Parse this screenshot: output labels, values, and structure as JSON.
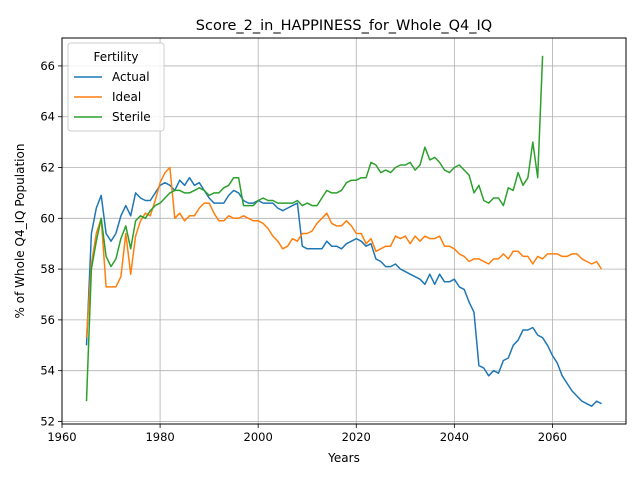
{
  "chart_data": {
    "type": "line",
    "title": "Score_2_in_HAPPINESS_for_Whole_Q4_IQ",
    "xlabel": "Years",
    "ylabel": "% of Whole Q4_IQ Population",
    "xlim": [
      1960,
      2075
    ],
    "ylim": [
      51.9,
      67.1
    ],
    "xticks": [
      1960,
      1980,
      2000,
      2020,
      2040,
      2060
    ],
    "yticks": [
      52,
      54,
      56,
      58,
      60,
      62,
      64,
      66
    ],
    "grid": true,
    "legend": {
      "title": "Fertility",
      "position": "top-left"
    },
    "series": [
      {
        "name": "Actual",
        "color": "#1f77b4",
        "points": [
          [
            1965,
            55.0
          ],
          [
            1966,
            59.4
          ],
          [
            1967,
            60.4
          ],
          [
            1968,
            60.9
          ],
          [
            1969,
            59.4
          ],
          [
            1970,
            59.1
          ],
          [
            1971,
            59.4
          ],
          [
            1972,
            60.1
          ],
          [
            1973,
            60.5
          ],
          [
            1974,
            60.1
          ],
          [
            1975,
            61.0
          ],
          [
            1976,
            60.8
          ],
          [
            1977,
            60.7
          ],
          [
            1978,
            60.7
          ],
          [
            1979,
            61.0
          ],
          [
            1980,
            61.3
          ],
          [
            1981,
            61.4
          ],
          [
            1982,
            61.3
          ],
          [
            1983,
            61.1
          ],
          [
            1984,
            61.5
          ],
          [
            1985,
            61.3
          ],
          [
            1986,
            61.6
          ],
          [
            1987,
            61.3
          ],
          [
            1988,
            61.4
          ],
          [
            1989,
            61.1
          ],
          [
            1990,
            60.8
          ],
          [
            1991,
            60.6
          ],
          [
            1992,
            60.6
          ],
          [
            1993,
            60.6
          ],
          [
            1994,
            60.9
          ],
          [
            1995,
            61.1
          ],
          [
            1996,
            61.0
          ],
          [
            1997,
            60.7
          ],
          [
            1998,
            60.6
          ],
          [
            1999,
            60.6
          ],
          [
            2000,
            60.7
          ],
          [
            2001,
            60.6
          ],
          [
            2002,
            60.6
          ],
          [
            2003,
            60.6
          ],
          [
            2004,
            60.4
          ],
          [
            2005,
            60.3
          ],
          [
            2006,
            60.4
          ],
          [
            2007,
            60.5
          ],
          [
            2008,
            60.6
          ],
          [
            2009,
            58.9
          ],
          [
            2010,
            58.8
          ],
          [
            2011,
            58.8
          ],
          [
            2012,
            58.8
          ],
          [
            2013,
            58.8
          ],
          [
            2014,
            59.1
          ],
          [
            2015,
            58.9
          ],
          [
            2016,
            58.9
          ],
          [
            2017,
            58.8
          ],
          [
            2018,
            59.0
          ],
          [
            2019,
            59.1
          ],
          [
            2020,
            59.2
          ],
          [
            2021,
            59.1
          ],
          [
            2022,
            58.9
          ],
          [
            2023,
            59.0
          ],
          [
            2024,
            58.4
          ],
          [
            2025,
            58.3
          ],
          [
            2026,
            58.1
          ],
          [
            2027,
            58.1
          ],
          [
            2028,
            58.2
          ],
          [
            2029,
            58.0
          ],
          [
            2030,
            57.9
          ],
          [
            2031,
            57.8
          ],
          [
            2032,
            57.7
          ],
          [
            2033,
            57.6
          ],
          [
            2034,
            57.4
          ],
          [
            2035,
            57.8
          ],
          [
            2036,
            57.4
          ],
          [
            2037,
            57.8
          ],
          [
            2038,
            57.5
          ],
          [
            2039,
            57.5
          ],
          [
            2040,
            57.6
          ],
          [
            2041,
            57.3
          ],
          [
            2042,
            57.2
          ],
          [
            2043,
            56.7
          ],
          [
            2044,
            56.3
          ],
          [
            2045,
            54.2
          ],
          [
            2046,
            54.1
          ],
          [
            2047,
            53.8
          ],
          [
            2048,
            54.0
          ],
          [
            2049,
            53.9
          ],
          [
            2050,
            54.4
          ],
          [
            2051,
            54.5
          ],
          [
            2052,
            55.0
          ],
          [
            2053,
            55.2
          ],
          [
            2054,
            55.6
          ],
          [
            2055,
            55.6
          ],
          [
            2056,
            55.7
          ],
          [
            2057,
            55.4
          ],
          [
            2058,
            55.3
          ],
          [
            2059,
            55.0
          ],
          [
            2060,
            54.6
          ],
          [
            2061,
            54.3
          ],
          [
            2062,
            53.8
          ],
          [
            2063,
            53.5
          ],
          [
            2064,
            53.2
          ],
          [
            2065,
            53.0
          ],
          [
            2066,
            52.8
          ],
          [
            2067,
            52.7
          ],
          [
            2068,
            52.6
          ],
          [
            2069,
            52.8
          ],
          [
            2070,
            52.7
          ]
        ]
      },
      {
        "name": "Ideal",
        "color": "#ff7f0e",
        "points": [
          [
            1965,
            55.3
          ],
          [
            1966,
            58.2
          ],
          [
            1967,
            59.4
          ],
          [
            1968,
            60.0
          ],
          [
            1969,
            57.3
          ],
          [
            1970,
            57.3
          ],
          [
            1971,
            57.3
          ],
          [
            1972,
            57.7
          ],
          [
            1973,
            59.4
          ],
          [
            1974,
            57.8
          ],
          [
            1975,
            59.3
          ],
          [
            1976,
            59.9
          ],
          [
            1977,
            60.2
          ],
          [
            1978,
            60.1
          ],
          [
            1979,
            60.7
          ],
          [
            1980,
            61.4
          ],
          [
            1981,
            61.8
          ],
          [
            1982,
            62.0
          ],
          [
            1983,
            60.0
          ],
          [
            1984,
            60.2
          ],
          [
            1985,
            59.9
          ],
          [
            1986,
            60.1
          ],
          [
            1987,
            60.1
          ],
          [
            1988,
            60.4
          ],
          [
            1989,
            60.6
          ],
          [
            1990,
            60.6
          ],
          [
            1991,
            60.2
          ],
          [
            1992,
            59.9
          ],
          [
            1993,
            59.9
          ],
          [
            1994,
            60.1
          ],
          [
            1995,
            60.0
          ],
          [
            1996,
            60.0
          ],
          [
            1997,
            60.1
          ],
          [
            1998,
            60.0
          ],
          [
            1999,
            59.9
          ],
          [
            2000,
            59.9
          ],
          [
            2001,
            59.8
          ],
          [
            2002,
            59.6
          ],
          [
            2003,
            59.3
          ],
          [
            2004,
            59.1
          ],
          [
            2005,
            58.8
          ],
          [
            2006,
            58.9
          ],
          [
            2007,
            59.2
          ],
          [
            2008,
            59.1
          ],
          [
            2009,
            59.4
          ],
          [
            2010,
            59.4
          ],
          [
            2011,
            59.5
          ],
          [
            2012,
            59.8
          ],
          [
            2013,
            60.0
          ],
          [
            2014,
            60.2
          ],
          [
            2015,
            59.8
          ],
          [
            2016,
            59.7
          ],
          [
            2017,
            59.7
          ],
          [
            2018,
            59.9
          ],
          [
            2019,
            59.7
          ],
          [
            2020,
            59.4
          ],
          [
            2021,
            59.4
          ],
          [
            2022,
            59.0
          ],
          [
            2023,
            59.2
          ],
          [
            2024,
            58.7
          ],
          [
            2025,
            58.8
          ],
          [
            2026,
            58.9
          ],
          [
            2027,
            58.9
          ],
          [
            2028,
            59.3
          ],
          [
            2029,
            59.2
          ],
          [
            2030,
            59.3
          ],
          [
            2031,
            59.0
          ],
          [
            2032,
            59.3
          ],
          [
            2033,
            59.1
          ],
          [
            2034,
            59.3
          ],
          [
            2035,
            59.2
          ],
          [
            2036,
            59.2
          ],
          [
            2037,
            59.3
          ],
          [
            2038,
            58.9
          ],
          [
            2039,
            58.9
          ],
          [
            2040,
            58.8
          ],
          [
            2041,
            58.6
          ],
          [
            2042,
            58.5
          ],
          [
            2043,
            58.3
          ],
          [
            2044,
            58.4
          ],
          [
            2045,
            58.4
          ],
          [
            2046,
            58.3
          ],
          [
            2047,
            58.2
          ],
          [
            2048,
            58.4
          ],
          [
            2049,
            58.4
          ],
          [
            2050,
            58.6
          ],
          [
            2051,
            58.4
          ],
          [
            2052,
            58.7
          ],
          [
            2053,
            58.7
          ],
          [
            2054,
            58.5
          ],
          [
            2055,
            58.5
          ],
          [
            2056,
            58.2
          ],
          [
            2057,
            58.5
          ],
          [
            2058,
            58.4
          ],
          [
            2059,
            58.6
          ],
          [
            2060,
            58.6
          ],
          [
            2061,
            58.6
          ],
          [
            2062,
            58.5
          ],
          [
            2063,
            58.5
          ],
          [
            2064,
            58.6
          ],
          [
            2065,
            58.6
          ],
          [
            2066,
            58.4
          ],
          [
            2067,
            58.3
          ],
          [
            2068,
            58.2
          ],
          [
            2069,
            58.3
          ],
          [
            2070,
            58.0
          ]
        ]
      },
      {
        "name": "Sterile",
        "color": "#2ca02c",
        "points": [
          [
            1965,
            52.8
          ],
          [
            1966,
            58.0
          ],
          [
            1967,
            59.1
          ],
          [
            1968,
            60.0
          ],
          [
            1969,
            58.5
          ],
          [
            1970,
            58.1
          ],
          [
            1971,
            58.4
          ],
          [
            1972,
            59.2
          ],
          [
            1973,
            59.7
          ],
          [
            1974,
            58.8
          ],
          [
            1975,
            59.9
          ],
          [
            1976,
            60.1
          ],
          [
            1977,
            60.0
          ],
          [
            1978,
            60.3
          ],
          [
            1979,
            60.5
          ],
          [
            1980,
            60.6
          ],
          [
            1981,
            60.8
          ],
          [
            1982,
            61.0
          ],
          [
            1983,
            61.1
          ],
          [
            1984,
            61.1
          ],
          [
            1985,
            61.0
          ],
          [
            1986,
            61.0
          ],
          [
            1987,
            61.1
          ],
          [
            1988,
            61.2
          ],
          [
            1989,
            61.1
          ],
          [
            1990,
            60.9
          ],
          [
            1991,
            61.0
          ],
          [
            1992,
            61.0
          ],
          [
            1993,
            61.2
          ],
          [
            1994,
            61.3
          ],
          [
            1995,
            61.6
          ],
          [
            1996,
            61.6
          ],
          [
            1997,
            60.5
          ],
          [
            1998,
            60.5
          ],
          [
            1999,
            60.5
          ],
          [
            2000,
            60.7
          ],
          [
            2001,
            60.8
          ],
          [
            2002,
            60.7
          ],
          [
            2003,
            60.7
          ],
          [
            2004,
            60.6
          ],
          [
            2005,
            60.6
          ],
          [
            2006,
            60.6
          ],
          [
            2007,
            60.6
          ],
          [
            2008,
            60.7
          ],
          [
            2009,
            60.5
          ],
          [
            2010,
            60.6
          ],
          [
            2011,
            60.5
          ],
          [
            2012,
            60.5
          ],
          [
            2013,
            60.8
          ],
          [
            2014,
            61.1
          ],
          [
            2015,
            61.0
          ],
          [
            2016,
            61.0
          ],
          [
            2017,
            61.1
          ],
          [
            2018,
            61.4
          ],
          [
            2019,
            61.5
          ],
          [
            2020,
            61.5
          ],
          [
            2021,
            61.6
          ],
          [
            2022,
            61.6
          ],
          [
            2023,
            62.2
          ],
          [
            2024,
            62.1
          ],
          [
            2025,
            61.8
          ],
          [
            2026,
            61.9
          ],
          [
            2027,
            61.8
          ],
          [
            2028,
            62.0
          ],
          [
            2029,
            62.1
          ],
          [
            2030,
            62.1
          ],
          [
            2031,
            62.2
          ],
          [
            2032,
            61.9
          ],
          [
            2033,
            62.1
          ],
          [
            2034,
            62.8
          ],
          [
            2035,
            62.3
          ],
          [
            2036,
            62.4
          ],
          [
            2037,
            62.2
          ],
          [
            2038,
            61.9
          ],
          [
            2039,
            61.8
          ],
          [
            2040,
            62.0
          ],
          [
            2041,
            62.1
          ],
          [
            2042,
            61.9
          ],
          [
            2043,
            61.7
          ],
          [
            2044,
            61.0
          ],
          [
            2045,
            61.3
          ],
          [
            2046,
            60.7
          ],
          [
            2047,
            60.6
          ],
          [
            2048,
            60.8
          ],
          [
            2049,
            60.8
          ],
          [
            2050,
            60.5
          ],
          [
            2051,
            61.2
          ],
          [
            2052,
            61.1
          ],
          [
            2053,
            61.8
          ],
          [
            2054,
            61.3
          ],
          [
            2055,
            61.6
          ],
          [
            2056,
            63.0
          ],
          [
            2057,
            61.6
          ],
          [
            2058,
            66.4
          ]
        ]
      }
    ]
  }
}
